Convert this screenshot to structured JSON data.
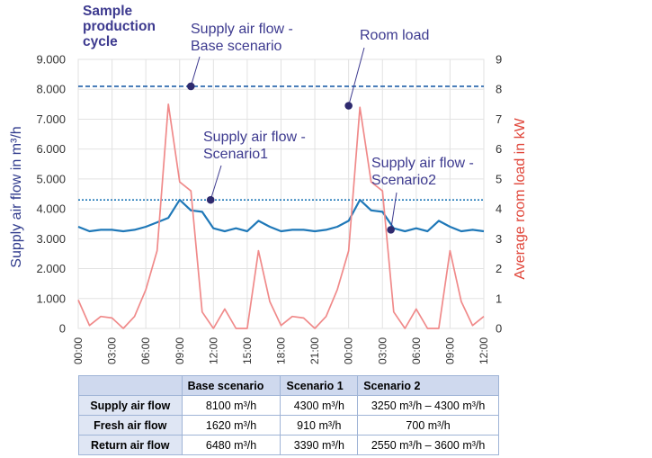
{
  "annotations": {
    "panel_title": "Sample production cycle",
    "base_label": "Supply air flow - Base scenario",
    "room_label": "Room load",
    "s1_label": "Supply air flow - Scenario1",
    "s2_label": "Supply air flow - Scenario2"
  },
  "table": {
    "headers": [
      "",
      "Base scenario",
      "Scenario 1",
      "Scenario 2"
    ],
    "rows": [
      {
        "label": "Supply air flow",
        "cells": [
          "8100 m³/h",
          "4300 m³/h",
          "3250 m³/h – 4300 m³/h"
        ]
      },
      {
        "label": "Fresh air flow",
        "cells": [
          "1620 m³/h",
          "910 m³/h",
          "700 m³/h"
        ]
      },
      {
        "label": "Return air flow",
        "cells": [
          "6480 m³/h",
          "3390 m³/h",
          "2550 m³/h – 3600 m³/h"
        ]
      }
    ]
  },
  "chart_data": {
    "type": "line",
    "ylabel_left": "Supply air flow in m³/h",
    "ylabel_right": "Average room load in kW",
    "left_ylim": [
      0,
      9000
    ],
    "right_ylim": [
      0,
      9
    ],
    "left_ticks": [
      "0",
      "1.000",
      "2.000",
      "3.000",
      "4.000",
      "5.000",
      "6.000",
      "7.000",
      "8.000",
      "9.000"
    ],
    "right_ticks": [
      "0",
      "1",
      "2",
      "3",
      "4",
      "5",
      "6",
      "7",
      "8",
      "9"
    ],
    "x_ticks": [
      "00:00",
      "03:00",
      "06:00",
      "09:00",
      "12:00",
      "15:00",
      "18:00",
      "21:00",
      "00:00",
      "03:00",
      "06:00",
      "09:00",
      "12:00"
    ],
    "x_hours": [
      0,
      1,
      2,
      3,
      4,
      5,
      6,
      7,
      8,
      9,
      10,
      11,
      12,
      13,
      14,
      15,
      16,
      17,
      18,
      19,
      20,
      21,
      22,
      23,
      24,
      25,
      26,
      27,
      28,
      29,
      30,
      31,
      32,
      33,
      34,
      35,
      36
    ],
    "series": [
      {
        "name": "Supply air flow - Base scenario",
        "axis": "left",
        "style": "dashed",
        "color": "#1f5fa8",
        "constant": 8100
      },
      {
        "name": "Supply air flow - Scenario1",
        "axis": "left",
        "style": "dotted",
        "color": "#1f78b8",
        "constant": 4300
      },
      {
        "name": "Supply air flow - Scenario2",
        "axis": "left",
        "style": "solid",
        "color": "#1f78b8",
        "values": [
          3400,
          3250,
          3300,
          3300,
          3250,
          3300,
          3400,
          3550,
          3700,
          4300,
          3950,
          3900,
          3350,
          3250,
          3350,
          3250,
          3600,
          3400,
          3250,
          3300,
          3300,
          3250,
          3300,
          3400,
          3600,
          4300,
          3950,
          3900,
          3350,
          3250,
          3350,
          3250,
          3600,
          3400,
          3250,
          3300,
          3250
        ]
      },
      {
        "name": "Room load",
        "axis": "right",
        "style": "solid",
        "color": "#f08a8a",
        "values": [
          0.95,
          0.1,
          0.4,
          0.35,
          0.0,
          0.4,
          1.3,
          2.6,
          7.5,
          4.9,
          4.6,
          0.55,
          0.0,
          0.65,
          0.0,
          0.0,
          2.6,
          0.9,
          0.1,
          0.4,
          0.35,
          0.0,
          0.4,
          1.3,
          2.6,
          7.4,
          4.9,
          4.6,
          0.55,
          0.0,
          0.65,
          0.0,
          0.0,
          2.6,
          0.9,
          0.1,
          0.4
        ]
      }
    ],
    "markers": [
      {
        "label": "Supply air flow - Base scenario",
        "axis": "left",
        "x": 10.0,
        "y": 8100
      },
      {
        "label": "Room load",
        "axis": "right",
        "x": 24.0,
        "y": 7.45
      },
      {
        "label": "Supply air flow - Scenario1",
        "axis": "left",
        "x": 11.75,
        "y": 4300
      },
      {
        "label": "Supply air flow - Scenario2",
        "axis": "left",
        "x": 27.75,
        "y": 3300
      }
    ]
  }
}
